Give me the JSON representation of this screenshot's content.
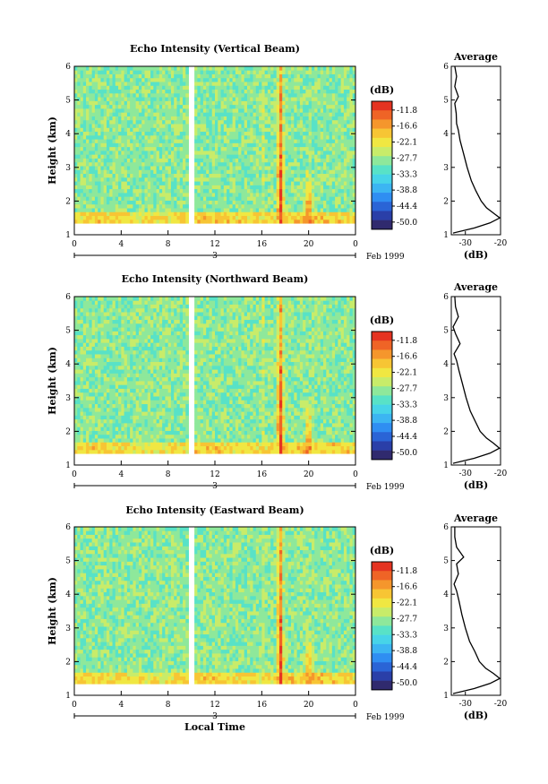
{
  "chart_data": [
    {
      "type": "heatmap",
      "panel": "vertical",
      "title": "Echo Intensity (Vertical Beam)",
      "ylabel": "Height (km)",
      "x_ticks": [
        "0",
        "4",
        "8",
        "12",
        "16",
        "20",
        "0"
      ],
      "xlim": [
        0,
        24
      ],
      "y_ticks": [
        "1",
        "2",
        "3",
        "4",
        "5",
        "6"
      ],
      "ylim": [
        1,
        6
      ],
      "date_marker": "3",
      "date_label": "Feb 1999",
      "colorbar": {
        "label": "(dB)",
        "ticks": [
          "-11.8",
          "-16.6",
          "-22.1",
          "-27.7",
          "-33.3",
          "-38.8",
          "-44.4",
          "-50.0"
        ]
      },
      "profile": {
        "title": "Average",
        "xlabel": "(dB)",
        "x_ticks": [
          "-30",
          "-20"
        ],
        "xlim": [
          -34,
          -20
        ],
        "heights": [
          1.05,
          1.2,
          1.35,
          1.5,
          1.6,
          1.8,
          2.0,
          2.3,
          2.6,
          3.0,
          3.4,
          3.8,
          4.1,
          4.3,
          4.6,
          4.9,
          5.1,
          5.4,
          5.7,
          6.0
        ],
        "values": [
          -33.5,
          -27.5,
          -23.0,
          -20.2,
          -21.5,
          -24.0,
          -25.5,
          -27.0,
          -28.3,
          -29.5,
          -30.5,
          -31.5,
          -32.0,
          -32.5,
          -32.6,
          -33.0,
          -32.0,
          -33.0,
          -32.5,
          -33.0
        ]
      }
    },
    {
      "type": "heatmap",
      "panel": "northward",
      "title": "Echo Intensity (Northward Beam)",
      "ylabel": "Height (km)",
      "x_ticks": [
        "0",
        "4",
        "8",
        "12",
        "16",
        "20",
        "0"
      ],
      "xlim": [
        0,
        24
      ],
      "y_ticks": [
        "1",
        "2",
        "3",
        "4",
        "5",
        "6"
      ],
      "ylim": [
        1,
        6
      ],
      "date_marker": "3",
      "date_label": "Feb 1999",
      "colorbar": {
        "label": "(dB)",
        "ticks": [
          "-11.8",
          "-16.6",
          "-22.1",
          "-27.7",
          "-33.3",
          "-38.8",
          "-44.4",
          "-50.0"
        ]
      },
      "profile": {
        "title": "Average",
        "xlabel": "(dB)",
        "x_ticks": [
          "-30",
          "-20"
        ],
        "xlim": [
          -34,
          -20
        ],
        "heights": [
          1.05,
          1.2,
          1.35,
          1.5,
          1.65,
          1.8,
          2.0,
          2.3,
          2.6,
          3.0,
          3.4,
          3.8,
          4.1,
          4.3,
          4.6,
          4.9,
          5.1,
          5.4,
          5.7,
          6.0
        ],
        "values": [
          -33.5,
          -27.5,
          -23.0,
          -20.3,
          -22.0,
          -24.0,
          -25.8,
          -27.2,
          -28.6,
          -29.8,
          -30.8,
          -31.8,
          -32.5,
          -33.2,
          -31.5,
          -32.8,
          -33.5,
          -32.0,
          -32.8,
          -33.0
        ]
      }
    },
    {
      "type": "heatmap",
      "panel": "eastward",
      "title": "Echo Intensity (Eastward Beam)",
      "ylabel": "Height (km)",
      "xlabel": "Local Time",
      "x_ticks": [
        "0",
        "4",
        "8",
        "12",
        "16",
        "20",
        "0"
      ],
      "xlim": [
        0,
        24
      ],
      "y_ticks": [
        "1",
        "2",
        "3",
        "4",
        "5",
        "6"
      ],
      "ylim": [
        1,
        6
      ],
      "date_marker": "3",
      "date_label": "Feb 1999",
      "colorbar": {
        "label": "(dB)",
        "ticks": [
          "-11.8",
          "-16.6",
          "-22.1",
          "-27.7",
          "-33.3",
          "-38.8",
          "-44.4",
          "-50.0"
        ]
      },
      "profile": {
        "title": "Average",
        "xlabel": "(dB)",
        "x_ticks": [
          "-30",
          "-20"
        ],
        "xlim": [
          -34,
          -20
        ],
        "heights": [
          1.05,
          1.2,
          1.35,
          1.5,
          1.65,
          1.8,
          2.0,
          2.3,
          2.6,
          3.0,
          3.4,
          3.8,
          4.1,
          4.3,
          4.6,
          4.9,
          5.1,
          5.4,
          5.7,
          6.0
        ],
        "values": [
          -33.5,
          -27.5,
          -23.0,
          -20.2,
          -22.0,
          -24.2,
          -26.0,
          -27.3,
          -28.8,
          -30.0,
          -31.0,
          -31.8,
          -32.5,
          -33.2,
          -32.0,
          -32.5,
          -30.5,
          -32.5,
          -33.0,
          -33.0
        ]
      }
    }
  ],
  "colors": {
    "colormap": [
      "#302a6e",
      "#2a3fa8",
      "#2a64d6",
      "#2f8ef2",
      "#3cb5f2",
      "#47d4e8",
      "#58e2c7",
      "#8ee89b",
      "#c8ec6a",
      "#f0e742",
      "#f7c534",
      "#f5962c",
      "#ef6426",
      "#e53321"
    ]
  }
}
